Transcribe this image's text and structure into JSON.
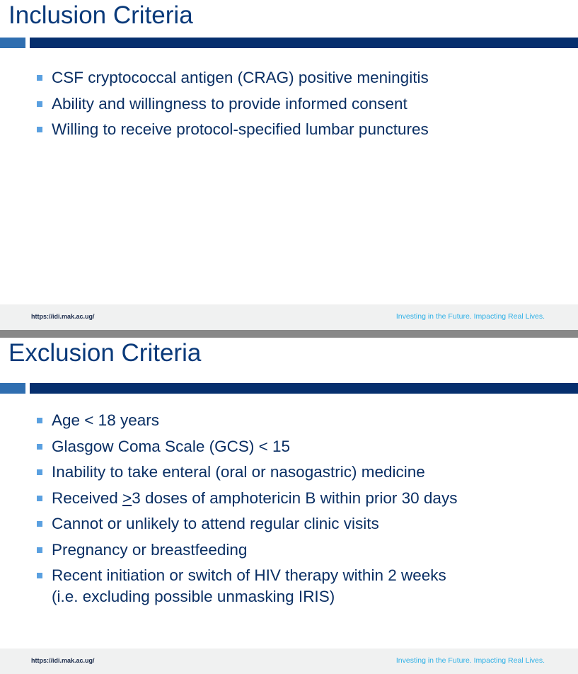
{
  "slides": [
    {
      "title": "Inclusion Criteria",
      "items": [
        "CSF cryptococcal antigen (CRAG) positive meningitis",
        "Ability and willingness to provide informed consent",
        "Willing to receive protocol-specified lumbar punctures"
      ],
      "footer": {
        "url": "https://idi.mak.ac.ug/",
        "tagline": "Investing in the Future. Impacting Real Lives."
      }
    },
    {
      "title": "Exclusion Criteria",
      "items": [
        "Age < 18 years",
        "Glasgow Coma Scale (GCS) < 15",
        "Inability to take enteral (oral or nasogastric) medicine",
        {
          "underlined": ">",
          "rest": "3 doses of amphotericin B within prior 30 days",
          "prefix": "Received "
        },
        "Cannot or unlikely to attend regular clinic visits",
        "Pregnancy or breastfeeding",
        "Recent initiation or switch of HIV therapy within 2 weeks",
        "(i.e. excluding possible unmasking IRIS)"
      ],
      "footer": {
        "url": "https://idi.mak.ac.ug/",
        "tagline": "Investing in the Future. Impacting Real Lives."
      }
    }
  ],
  "colors": {
    "title": "#0a3a7a",
    "bar": "#062f6e",
    "accent": "#2f6eb0",
    "bullet": "#5aa0e0",
    "tagline": "#2eb0e6"
  }
}
